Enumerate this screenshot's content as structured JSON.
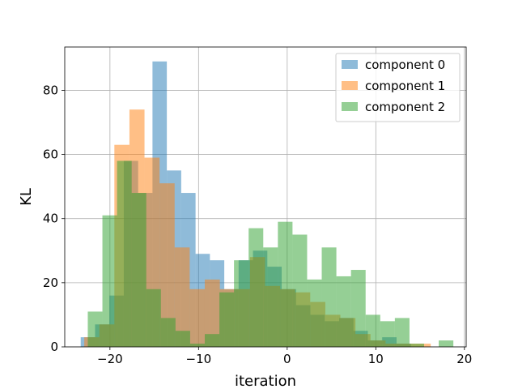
{
  "chart_data": {
    "type": "bar",
    "subtype": "histogram-overlay",
    "xlabel": "iteration",
    "ylabel": "KL",
    "xlim": [
      -25.1,
      20.2
    ],
    "ylim": [
      0,
      93.5
    ],
    "grid": true,
    "legend_position": "top-right",
    "x_ticks": [
      -20,
      -10,
      0,
      10,
      20
    ],
    "x_tick_labels": [
      "−20",
      "−10",
      "0",
      "10",
      "20"
    ],
    "y_ticks": [
      0,
      20,
      40,
      60,
      80
    ],
    "y_tick_labels": [
      "0",
      "20",
      "40",
      "60",
      "80"
    ],
    "series": [
      {
        "name": "component 0",
        "color": "#1f77b4",
        "bin_edges": [
          -23.3,
          -21.68,
          -20.06,
          -18.44,
          -16.82,
          -15.2,
          -13.58,
          -11.96,
          -10.34,
          -8.72,
          -7.1,
          -5.48,
          -3.86,
          -2.24,
          -0.62,
          1.0,
          2.62,
          4.24,
          5.86,
          7.48,
          9.1,
          10.72,
          12.34,
          13.96
        ],
        "counts": [
          3,
          7,
          16,
          58,
          48,
          89,
          55,
          48,
          29,
          27,
          18,
          27,
          30,
          25,
          18,
          13,
          10,
          8,
          9,
          5,
          2,
          3,
          1
        ]
      },
      {
        "name": "component 1",
        "color": "#ff7f0e",
        "bin_edges": [
          -22.9,
          -21.2,
          -19.5,
          -17.8,
          -16.1,
          -14.4,
          -12.7,
          -11.0,
          -9.3,
          -7.6,
          -5.9,
          -4.2,
          -2.5,
          -0.8,
          0.9,
          2.6,
          4.3,
          6.0,
          7.7,
          9.4,
          11.1,
          12.8,
          14.5,
          16.2
        ],
        "counts": [
          3,
          7,
          63,
          74,
          59,
          51,
          31,
          18,
          21,
          18,
          18,
          28,
          19,
          18,
          17,
          14,
          10,
          9,
          4,
          2,
          1,
          1,
          1
        ]
      },
      {
        "name": "component 2",
        "color": "#2ca02c",
        "bin_edges": [
          -22.5,
          -20.85,
          -19.2,
          -17.55,
          -15.9,
          -14.25,
          -12.6,
          -10.95,
          -9.3,
          -7.65,
          -6.0,
          -4.35,
          -2.7,
          -1.05,
          0.6,
          2.25,
          3.9,
          5.55,
          7.2,
          8.85,
          10.5,
          12.15,
          13.8,
          15.45,
          17.1,
          18.75
        ],
        "counts": [
          11,
          41,
          58,
          48,
          18,
          9,
          5,
          1,
          4,
          17,
          27,
          37,
          31,
          39,
          35,
          21,
          31,
          22,
          24,
          10,
          8,
          9,
          1,
          0,
          2
        ]
      }
    ]
  }
}
